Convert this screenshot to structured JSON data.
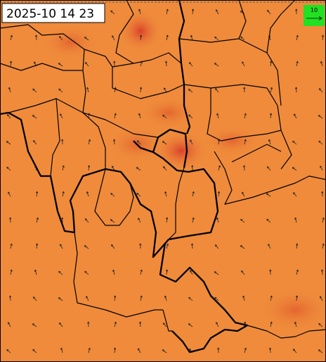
{
  "map": {
    "timestamp": "2025-10 14 23",
    "legend": {
      "label": "10"
    }
  }
}
